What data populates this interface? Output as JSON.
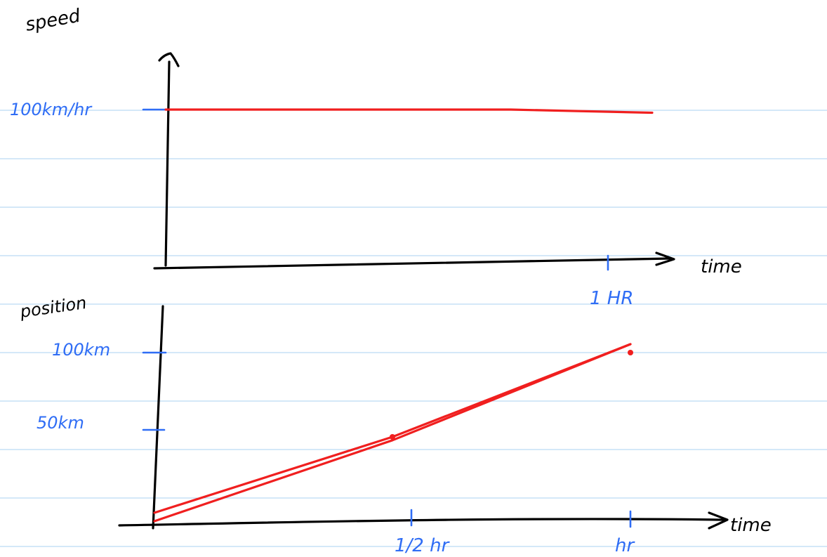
{
  "chart_data": [
    {
      "type": "line",
      "ylabel": "speed",
      "xlabel": "time",
      "y_tick_labels": [
        "100km/hr"
      ],
      "x_tick_labels": [
        "1 HR"
      ],
      "series": [
        {
          "x": [
            0,
            0.5,
            0.78,
            1.1
          ],
          "values": [
            100,
            100,
            100,
            98
          ]
        }
      ],
      "colors": {
        "series": "#f01f1f",
        "axis": "#000000",
        "labels": "#2f6df5"
      }
    },
    {
      "type": "line",
      "ylabel": "position",
      "xlabel": "time",
      "y_tick_labels": [
        "100km",
        "50km"
      ],
      "x_tick_labels": [
        "1/2 hr",
        "hr"
      ],
      "series": [
        {
          "x": [
            0,
            0.5,
            1
          ],
          "values": [
            5,
            50,
            105
          ]
        },
        {
          "x": [
            0,
            0.5,
            1
          ],
          "values": [
            0,
            48,
            105
          ]
        }
      ],
      "points": [
        {
          "x": 0.5,
          "y": 50
        },
        {
          "x": 1,
          "y": 100
        }
      ],
      "colors": {
        "series": "#f01f1f",
        "axis": "#000000",
        "labels": "#2f6df5"
      }
    }
  ]
}
